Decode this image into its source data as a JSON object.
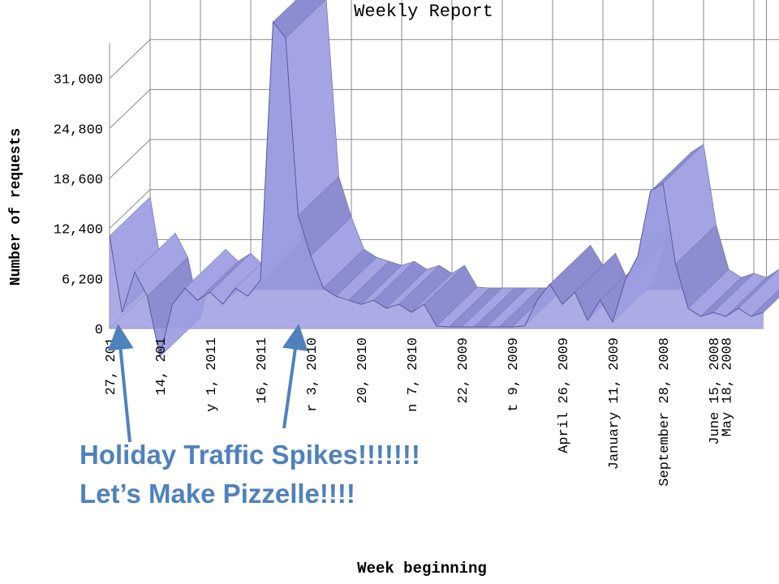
{
  "chart_data": {
    "type": "area3d",
    "title": "Weekly Report",
    "y_label": "Number of requests",
    "x_label": "Week beginning",
    "categories": [
      "27, 201",
      null,
      null,
      null,
      "14, 201",
      null,
      null,
      null,
      "y 1, 2011",
      null,
      null,
      null,
      "16, 2011",
      null,
      null,
      null,
      "r 3, 2010",
      null,
      null,
      null,
      "20, 2010",
      null,
      null,
      null,
      "n 7, 2010",
      null,
      null,
      null,
      "22, 2009",
      null,
      null,
      null,
      "t 9, 2009",
      null,
      null,
      null,
      "April 26, 2009",
      null,
      null,
      null,
      "January 11, 2009",
      null,
      null,
      null,
      "September 28, 2008",
      null,
      null,
      null,
      "June 15, 2008",
      "May 18, 2008",
      null,
      null,
      null
    ],
    "series": [
      {
        "name": "Number of requests",
        "color": "#9c9ce0",
        "values": [
          11500,
          2000,
          7000,
          4000,
          -3500,
          3000,
          5000,
          3500,
          4500,
          3000,
          5000,
          4000,
          6000,
          38000,
          36000,
          14000,
          9000,
          5000,
          4000,
          3500,
          3000,
          3500,
          2500,
          3000,
          2000,
          3000,
          300,
          200,
          200,
          200,
          200,
          200,
          200,
          300,
          3500,
          5500,
          3000,
          4500,
          1000,
          3500,
          800,
          6000,
          9000,
          17000,
          18000,
          8000,
          2500,
          1500,
          2000,
          1500,
          2500,
          1500,
          2000
        ]
      }
    ],
    "ylim": [
      0,
      36000
    ],
    "yticks": [
      0,
      {
        "value": 6200,
        "label": "6,200"
      },
      {
        "value": 12400,
        "label": "12,400"
      },
      {
        "value": 18600,
        "label": "18,600"
      },
      {
        "value": 24800,
        "label": "24,800"
      },
      {
        "value": 31000,
        "label": "31,000"
      }
    ],
    "grid": true,
    "annotations": [
      "Holiday Traffic Spikes!!!!!!!",
      "Let’s Make Pizzelle!!!!"
    ]
  }
}
